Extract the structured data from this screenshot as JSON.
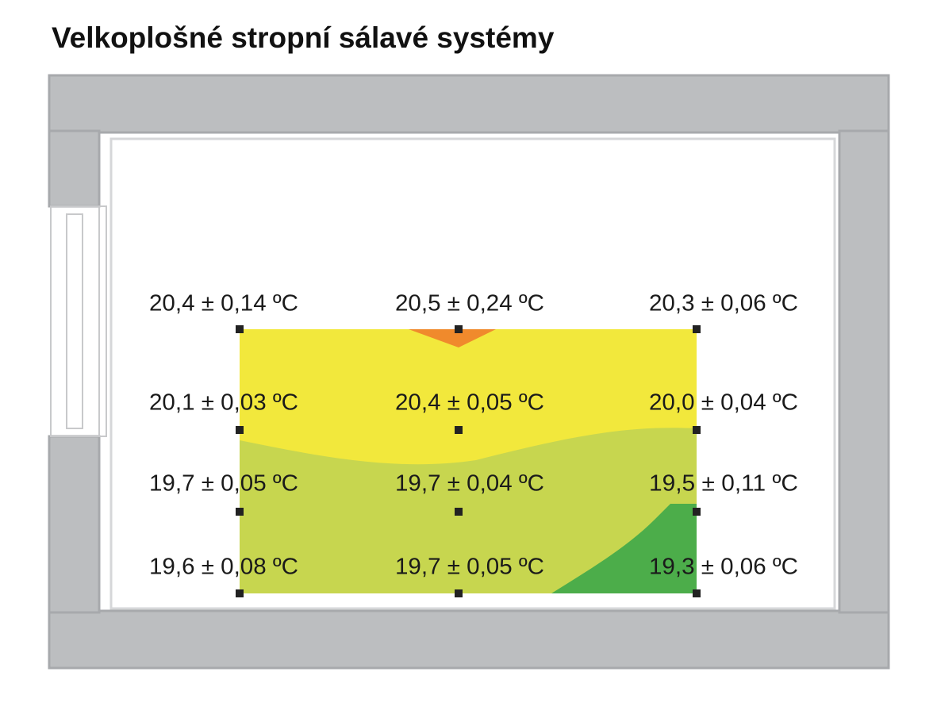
{
  "header": {
    "title": "Velkoplošné stropní sálavé systémy"
  },
  "grid": {
    "rows": [
      [
        "20,4 ± 0,14 ºC",
        "20,5 ± 0,24 ºC",
        "20,3 ± 0,06 ºC"
      ],
      [
        "20,1 ± 0,03 ºC",
        "20,4 ± 0,05 ºC",
        "20,0 ± 0,04 ºC"
      ],
      [
        "19,7 ± 0,05 ºC",
        "19,7 ± 0,04 ºC",
        "19,5 ± 0,11 ºC"
      ],
      [
        "19,6 ± 0,08 ºC",
        "19,7 ± 0,05 ºC",
        "19,3 ± 0,06 ºC"
      ]
    ]
  }
}
